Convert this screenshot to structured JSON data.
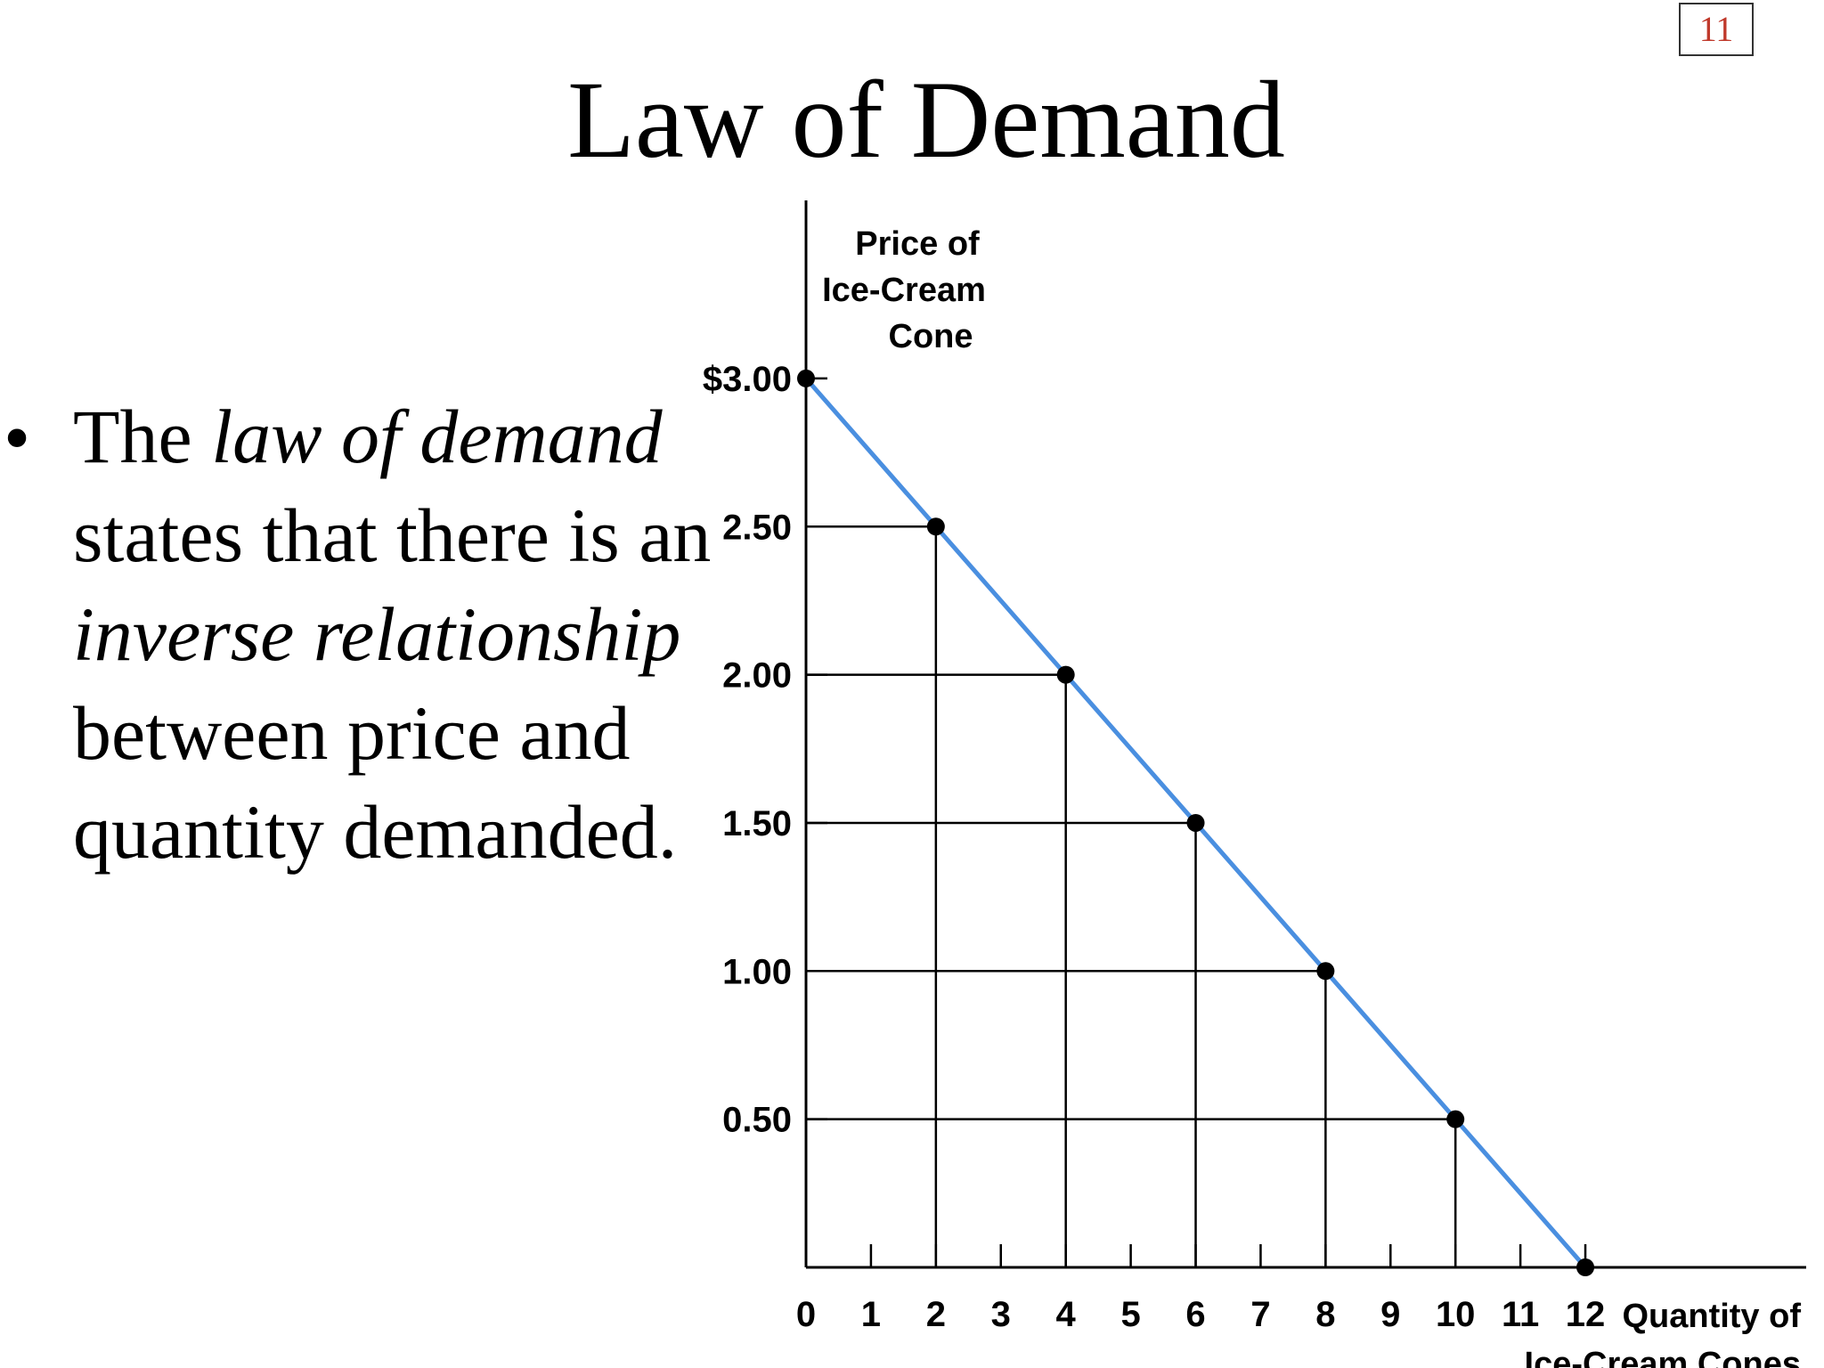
{
  "slide": {
    "page_number": "11",
    "title": "Law of Demand",
    "bullet": {
      "parts": [
        {
          "text": "The ",
          "italic": false
        },
        {
          "text": "law of demand",
          "italic": true
        },
        {
          "text": " states that there is an ",
          "italic": false
        },
        {
          "text": "inverse relationship",
          "italic": true
        },
        {
          "text": " between price and quantity demanded.",
          "italic": false
        }
      ]
    }
  },
  "chart_data": {
    "type": "line",
    "title": "",
    "ylabel": "Price of Ice-Cream Cone",
    "ylabel_lines": [
      "Price of",
      "Ice-Cream",
      "Cone"
    ],
    "xlabel": "Quantity of Ice-Cream Cones",
    "xlabel_lines": [
      "Quantity of",
      "Ice-Cream Cones"
    ],
    "xlim": [
      0,
      15.4
    ],
    "ylim": [
      0,
      3.6
    ],
    "x_ticks": [
      0,
      1,
      2,
      3,
      4,
      5,
      6,
      7,
      8,
      9,
      10,
      11,
      12
    ],
    "x_tick_labels": [
      "0",
      "1",
      "2",
      "3",
      "4",
      "5",
      "6",
      "7",
      "8",
      "9",
      "10",
      "11",
      "12"
    ],
    "y_ticks": [
      3.0,
      2.5,
      2.0,
      1.5,
      1.0,
      0.5
    ],
    "y_tick_labels": [
      "$3.00",
      "2.50",
      "2.00",
      "1.50",
      "1.00",
      "0.50"
    ],
    "series": [
      {
        "x": [
          0,
          2,
          4,
          6,
          8,
          10,
          12
        ],
        "y": [
          3.0,
          2.5,
          2.0,
          1.5,
          1.0,
          0.5,
          0.0
        ],
        "color": "#4a8fe0"
      }
    ],
    "guide_lines": true,
    "grid": false
  }
}
